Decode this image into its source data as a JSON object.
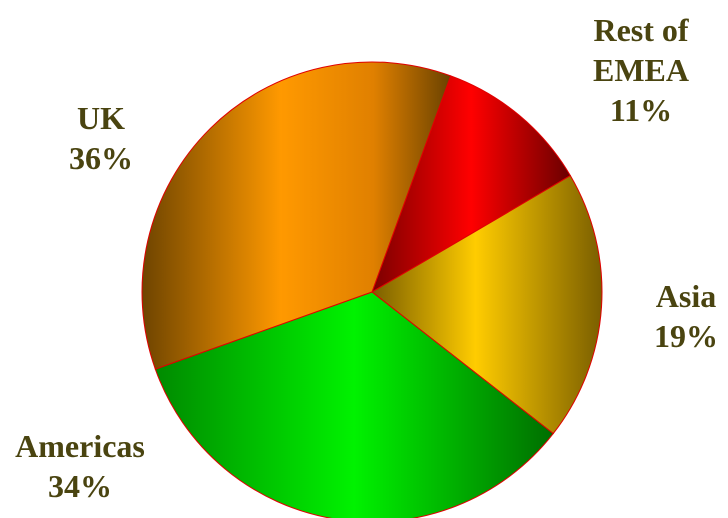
{
  "chart_data": {
    "type": "pie",
    "title": "",
    "slices": [
      {
        "label": "Rest of EMEA",
        "percent_label": "11%",
        "value": 11,
        "color": "#ff0000"
      },
      {
        "label": "Asia",
        "percent_label": "19%",
        "value": 19,
        "color": "#ffcc00"
      },
      {
        "label": "Americas",
        "percent_label": "34%",
        "value": 34,
        "color": "#00ee00"
      },
      {
        "label": "UK",
        "percent_label": "36%",
        "value": 36,
        "color": "#ff9900"
      }
    ],
    "label_color": "#4a4410",
    "edge_color": "#e00000"
  },
  "labels": {
    "rest_line1": "Rest of",
    "rest_line2": "EMEA",
    "rest_pct": "11%",
    "asia_name": "Asia",
    "asia_pct": "19%",
    "americas_name": "Americas",
    "americas_pct": "34%",
    "uk_name": "UK",
    "uk_pct": "36%"
  }
}
